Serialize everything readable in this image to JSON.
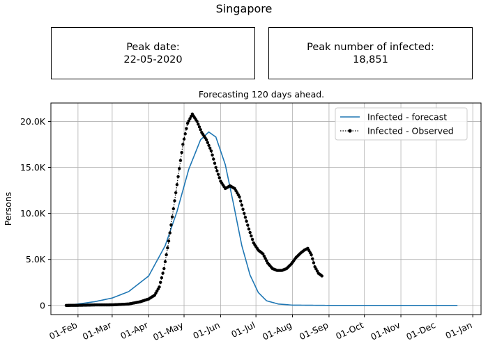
{
  "page": {
    "title": "Singapore",
    "peak_date_label": "Peak date:",
    "peak_date_value": "22-05-2020",
    "peak_infected_label": "Peak number of infected:",
    "peak_infected_value": "18,851",
    "subtitle": "Forecasting 120 days ahead."
  },
  "chart_data": {
    "type": "line",
    "title": "Forecasting 120 days ahead.",
    "xlabel": "",
    "ylabel": "Persons",
    "x_ticks": [
      "01-Feb",
      "01-Mar",
      "01-Apr",
      "01-May",
      "01-Jun",
      "01-Jul",
      "01-Aug",
      "01-Sep",
      "01-Oct",
      "01-Nov",
      "01-Dec",
      "01-Jan"
    ],
    "y_ticks": [
      0,
      5000,
      10000,
      15000,
      20000
    ],
    "y_tick_labels": [
      "0",
      "5.0K",
      "10.0K",
      "15.0K",
      "20.0K"
    ],
    "ylim": [
      -1000,
      22000
    ],
    "xlim": [
      "2020-01-09",
      "2021-01-08"
    ],
    "grid": true,
    "legend_position": "top-right",
    "series": [
      {
        "name": "Infected - forecast",
        "color": "#1f77b4",
        "style": "solid",
        "points": [
          [
            "2020-01-22",
            0
          ],
          [
            "2020-02-01",
            150
          ],
          [
            "2020-02-15",
            400
          ],
          [
            "2020-03-01",
            800
          ],
          [
            "2020-03-15",
            1500
          ],
          [
            "2020-04-01",
            3200
          ],
          [
            "2020-04-15",
            6500
          ],
          [
            "2020-04-25",
            10200
          ],
          [
            "2020-05-05",
            14800
          ],
          [
            "2020-05-15",
            18000
          ],
          [
            "2020-05-22",
            18851
          ],
          [
            "2020-05-28",
            18300
          ],
          [
            "2020-06-05",
            15300
          ],
          [
            "2020-06-12",
            11000
          ],
          [
            "2020-06-19",
            6500
          ],
          [
            "2020-06-26",
            3300
          ],
          [
            "2020-07-03",
            1400
          ],
          [
            "2020-07-10",
            500
          ],
          [
            "2020-07-20",
            150
          ],
          [
            "2020-08-01",
            30
          ],
          [
            "2020-09-01",
            0
          ],
          [
            "2020-10-01",
            0
          ],
          [
            "2020-11-01",
            0
          ],
          [
            "2020-12-01",
            0
          ],
          [
            "2020-12-19",
            0
          ]
        ]
      },
      {
        "name": "Infected - Observed",
        "color": "#000000",
        "style": "dotted-marker",
        "points": [
          [
            "2020-01-22",
            0
          ],
          [
            "2020-02-01",
            10
          ],
          [
            "2020-02-15",
            50
          ],
          [
            "2020-03-01",
            60
          ],
          [
            "2020-03-15",
            150
          ],
          [
            "2020-03-25",
            400
          ],
          [
            "2020-04-01",
            700
          ],
          [
            "2020-04-06",
            1100
          ],
          [
            "2020-04-10",
            2000
          ],
          [
            "2020-04-14",
            4000
          ],
          [
            "2020-04-18",
            7000
          ],
          [
            "2020-04-22",
            10500
          ],
          [
            "2020-04-26",
            14000
          ],
          [
            "2020-04-30",
            17500
          ],
          [
            "2020-05-04",
            19800
          ],
          [
            "2020-05-08",
            20800
          ],
          [
            "2020-05-12",
            20000
          ],
          [
            "2020-05-16",
            18800
          ],
          [
            "2020-05-20",
            18000
          ],
          [
            "2020-05-24",
            16800
          ],
          [
            "2020-05-28",
            15000
          ],
          [
            "2020-06-01",
            13500
          ],
          [
            "2020-06-05",
            12700
          ],
          [
            "2020-06-09",
            13000
          ],
          [
            "2020-06-13",
            12700
          ],
          [
            "2020-06-17",
            11800
          ],
          [
            "2020-06-21",
            10000
          ],
          [
            "2020-06-25",
            8300
          ],
          [
            "2020-06-29",
            6800
          ],
          [
            "2020-07-03",
            6000
          ],
          [
            "2020-07-07",
            5600
          ],
          [
            "2020-07-11",
            4600
          ],
          [
            "2020-07-15",
            4000
          ],
          [
            "2020-07-19",
            3800
          ],
          [
            "2020-07-23",
            3800
          ],
          [
            "2020-07-27",
            4000
          ],
          [
            "2020-07-31",
            4500
          ],
          [
            "2020-08-04",
            5200
          ],
          [
            "2020-08-08",
            5700
          ],
          [
            "2020-08-11",
            6000
          ],
          [
            "2020-08-14",
            6200
          ],
          [
            "2020-08-17",
            5500
          ],
          [
            "2020-08-20",
            4200
          ],
          [
            "2020-08-23",
            3500
          ],
          [
            "2020-08-26",
            3200
          ]
        ]
      }
    ]
  }
}
